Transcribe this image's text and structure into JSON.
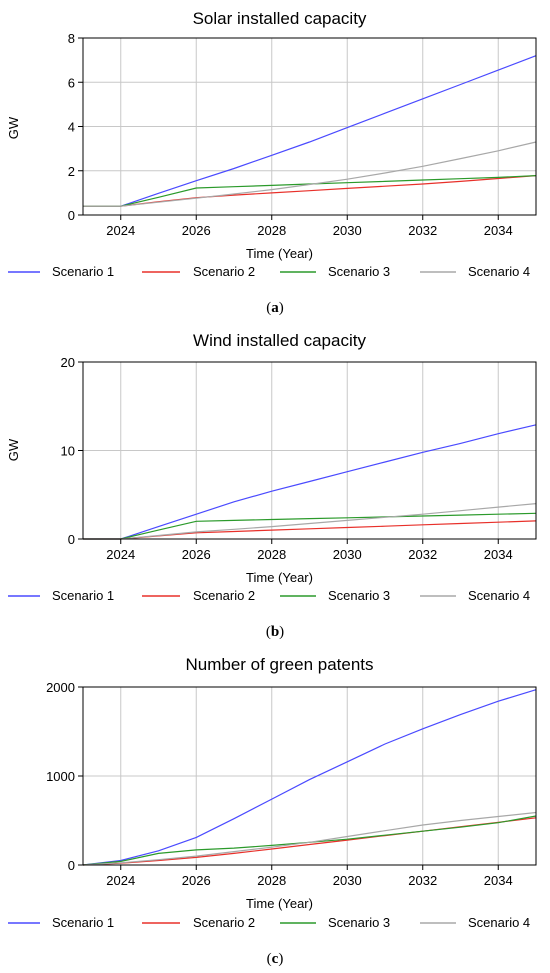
{
  "chart_data": [
    {
      "type": "line",
      "title": "Solar installed capacity",
      "xlabel": "Time (Year)",
      "ylabel": "GW",
      "xlim": [
        2023,
        2035
      ],
      "ylim": [
        0,
        8
      ],
      "xticks": [
        2024,
        2026,
        2028,
        2030,
        2032,
        2034
      ],
      "yticks": [
        0,
        2,
        4,
        6,
        8
      ],
      "grid": true,
      "legend_position": "bottom",
      "caption_letter": "a",
      "series": [
        {
          "name": "Scenario 1",
          "color": "#4a4aff",
          "x": [
            2023,
            2024,
            2025,
            2026,
            2027,
            2028,
            2029,
            2030,
            2031,
            2032,
            2033,
            2034,
            2035
          ],
          "y": [
            0.4,
            0.4,
            0.98,
            1.55,
            2.1,
            2.7,
            3.3,
            3.95,
            4.6,
            5.25,
            5.9,
            6.55,
            7.2
          ]
        },
        {
          "name": "Scenario 2",
          "color": "#e8302a",
          "x": [
            2023,
            2024,
            2025,
            2026,
            2027,
            2028,
            2029,
            2030,
            2031,
            2032,
            2033,
            2034,
            2035
          ],
          "y": [
            0.4,
            0.4,
            0.6,
            0.78,
            0.9,
            1.0,
            1.1,
            1.2,
            1.3,
            1.4,
            1.52,
            1.65,
            1.78
          ]
        },
        {
          "name": "Scenario 3",
          "color": "#2b9a2b",
          "x": [
            2023,
            2024,
            2025,
            2026,
            2027,
            2028,
            2029,
            2030,
            2031,
            2032,
            2033,
            2034,
            2035
          ],
          "y": [
            0.4,
            0.4,
            0.8,
            1.22,
            1.28,
            1.34,
            1.4,
            1.46,
            1.52,
            1.58,
            1.64,
            1.7,
            1.78
          ]
        },
        {
          "name": "Scenario 4",
          "color": "#a8a8a8",
          "x": [
            2023,
            2024,
            2025,
            2026,
            2027,
            2028,
            2029,
            2030,
            2031,
            2032,
            2033,
            2034,
            2035
          ],
          "y": [
            0.4,
            0.4,
            0.58,
            0.76,
            0.95,
            1.15,
            1.38,
            1.62,
            1.9,
            2.2,
            2.55,
            2.9,
            3.3
          ]
        }
      ]
    },
    {
      "type": "line",
      "title": "Wind installed capacity",
      "xlabel": "Time (Year)",
      "ylabel": "GW",
      "xlim": [
        2023,
        2035
      ],
      "ylim": [
        0,
        20
      ],
      "xticks": [
        2024,
        2026,
        2028,
        2030,
        2032,
        2034
      ],
      "yticks": [
        0,
        10,
        20
      ],
      "grid": true,
      "legend_position": "bottom",
      "caption_letter": "b",
      "series": [
        {
          "name": "Scenario 1",
          "color": "#4a4aff",
          "x": [
            2023,
            2024,
            2025,
            2026,
            2027,
            2028,
            2029,
            2030,
            2031,
            2032,
            2033,
            2034,
            2035
          ],
          "y": [
            0,
            0,
            1.4,
            2.8,
            4.2,
            5.4,
            6.5,
            7.6,
            8.7,
            9.8,
            10.8,
            11.9,
            12.9
          ]
        },
        {
          "name": "Scenario 2",
          "color": "#e8302a",
          "x": [
            2023,
            2024,
            2025,
            2026,
            2027,
            2028,
            2029,
            2030,
            2031,
            2032,
            2033,
            2034,
            2035
          ],
          "y": [
            0,
            0,
            0.35,
            0.7,
            0.85,
            1.0,
            1.15,
            1.3,
            1.45,
            1.6,
            1.75,
            1.9,
            2.05
          ]
        },
        {
          "name": "Scenario 3",
          "color": "#2b9a2b",
          "x": [
            2023,
            2024,
            2025,
            2026,
            2027,
            2028,
            2029,
            2030,
            2031,
            2032,
            2033,
            2034,
            2035
          ],
          "y": [
            0,
            0,
            1.0,
            2.0,
            2.1,
            2.2,
            2.3,
            2.4,
            2.5,
            2.6,
            2.7,
            2.8,
            2.9
          ]
        },
        {
          "name": "Scenario 4",
          "color": "#a8a8a8",
          "x": [
            2023,
            2024,
            2025,
            2026,
            2027,
            2028,
            2029,
            2030,
            2031,
            2032,
            2033,
            2034,
            2035
          ],
          "y": [
            0,
            0,
            0.4,
            0.8,
            1.1,
            1.4,
            1.75,
            2.1,
            2.45,
            2.8,
            3.2,
            3.6,
            4.0
          ]
        }
      ]
    },
    {
      "type": "line",
      "title": "Number of green patents",
      "xlabel": "Time (Year)",
      "ylabel": "",
      "xlim": [
        2023,
        2035
      ],
      "ylim": [
        0,
        2000
      ],
      "xticks": [
        2024,
        2026,
        2028,
        2030,
        2032,
        2034
      ],
      "yticks": [
        0,
        1000,
        2000
      ],
      "grid": true,
      "legend_position": "bottom",
      "caption_letter": "c",
      "series": [
        {
          "name": "Scenario 1",
          "color": "#4a4aff",
          "x": [
            2023,
            2024,
            2025,
            2026,
            2027,
            2028,
            2029,
            2030,
            2031,
            2032,
            2033,
            2034,
            2035
          ],
          "y": [
            0,
            50,
            160,
            310,
            520,
            740,
            960,
            1160,
            1360,
            1530,
            1690,
            1840,
            1970
          ]
        },
        {
          "name": "Scenario 2",
          "color": "#e8302a",
          "x": [
            2023,
            2024,
            2025,
            2026,
            2027,
            2028,
            2029,
            2030,
            2031,
            2032,
            2033,
            2034,
            2035
          ],
          "y": [
            0,
            20,
            50,
            85,
            130,
            180,
            230,
            280,
            330,
            380,
            430,
            480,
            530
          ]
        },
        {
          "name": "Scenario 3",
          "color": "#2b9a2b",
          "x": [
            2023,
            2024,
            2025,
            2026,
            2027,
            2028,
            2029,
            2030,
            2031,
            2032,
            2033,
            2034,
            2035
          ],
          "y": [
            0,
            40,
            130,
            170,
            190,
            220,
            255,
            290,
            335,
            380,
            425,
            475,
            550
          ]
        },
        {
          "name": "Scenario 4",
          "color": "#a8a8a8",
          "x": [
            2023,
            2024,
            2025,
            2026,
            2027,
            2028,
            2029,
            2030,
            2031,
            2032,
            2033,
            2034,
            2035
          ],
          "y": [
            0,
            25,
            60,
            100,
            150,
            200,
            255,
            320,
            385,
            450,
            500,
            545,
            590
          ]
        }
      ]
    }
  ]
}
